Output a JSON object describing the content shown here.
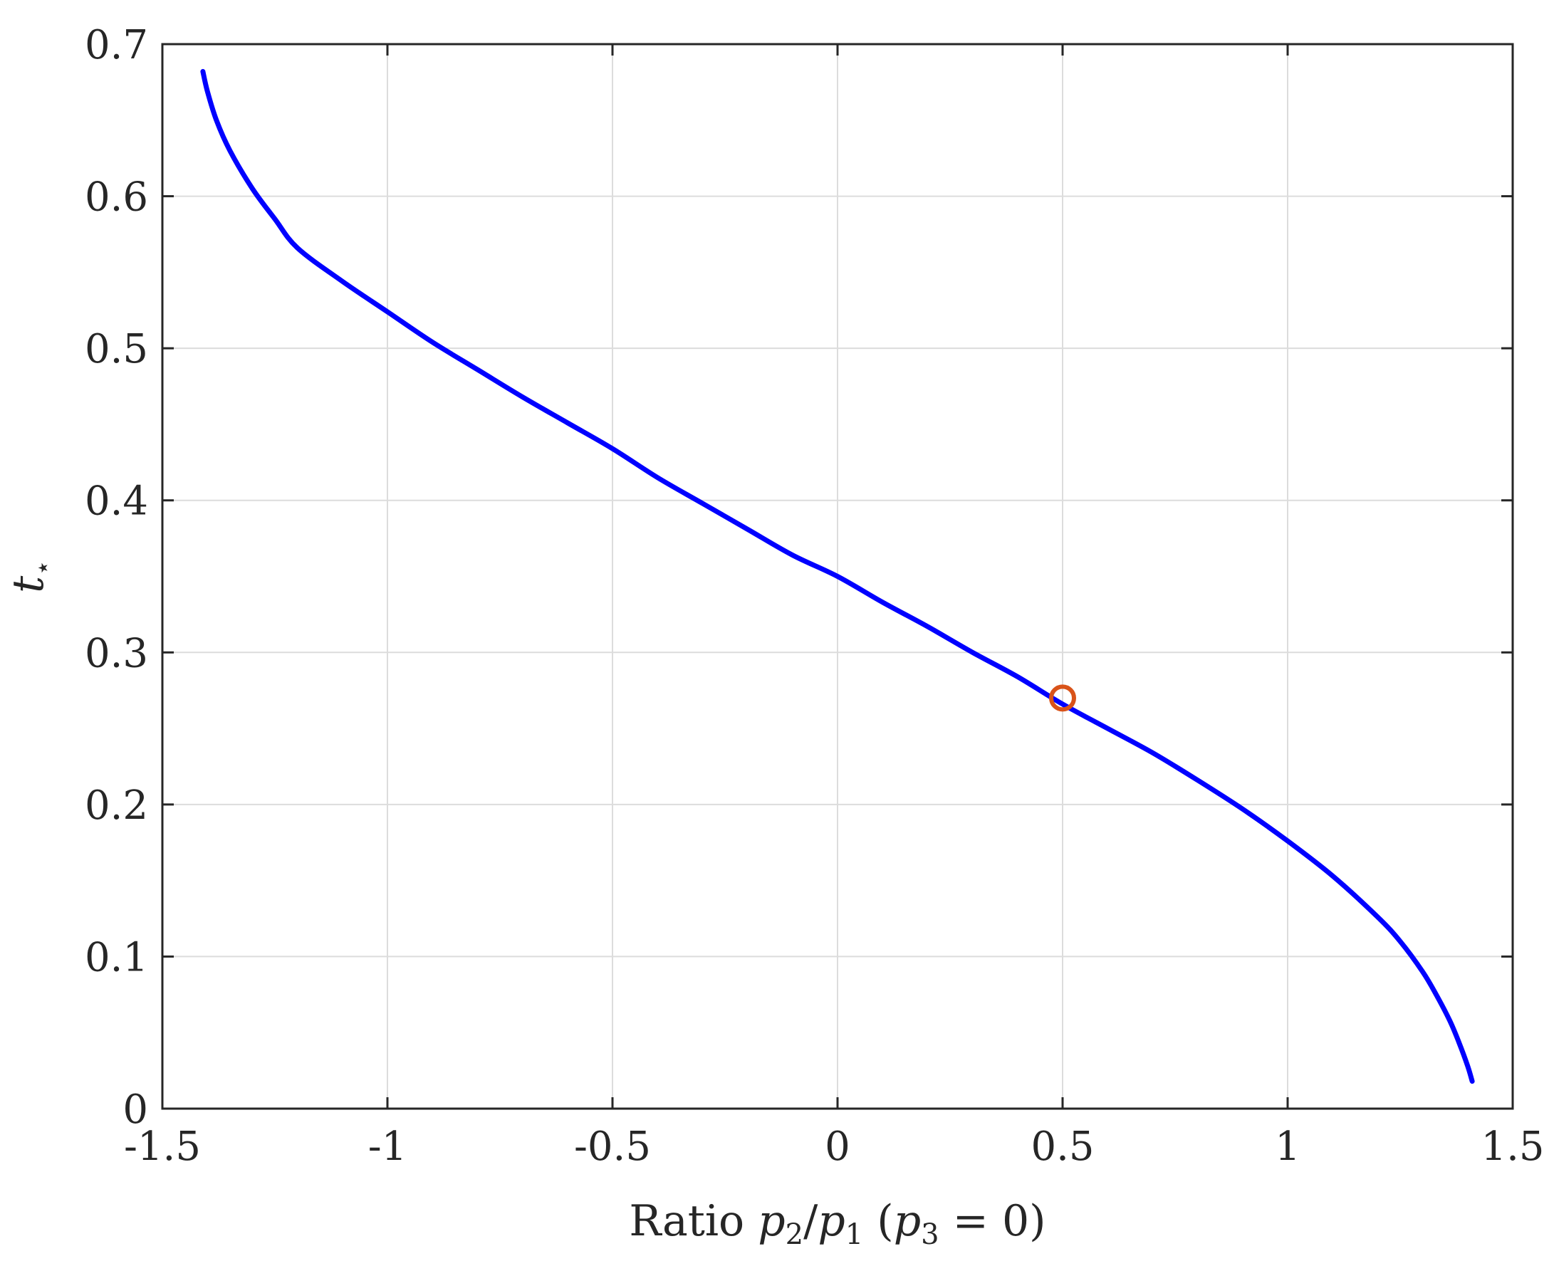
{
  "chart_data": {
    "type": "line",
    "title": "",
    "xlabel": {
      "prefix": "Ratio ",
      "p": "p",
      "sub2": "2",
      "slash": "/",
      "sub1": "1",
      "open": " (",
      "sub3": "3",
      "eq": " = 0)"
    },
    "ylabel": {
      "t": "t",
      "sub": "⋆"
    },
    "xlim": [
      -1.5,
      1.5
    ],
    "ylim": [
      0,
      0.7
    ],
    "xticks": [
      "-1.5",
      "-1",
      "-0.5",
      "0",
      "0.5",
      "1",
      "1.5"
    ],
    "yticks": [
      "0",
      "0.1",
      "0.2",
      "0.3",
      "0.4",
      "0.5",
      "0.6",
      "0.7"
    ],
    "grid": true,
    "series": [
      {
        "color": "#0000ff",
        "x": [
          -1.41,
          -1.4,
          -1.38,
          -1.35,
          -1.3,
          -1.25,
          -1.2,
          -1.1,
          -1.0,
          -0.9,
          -0.8,
          -0.7,
          -0.6,
          -0.5,
          -0.4,
          -0.3,
          -0.2,
          -0.1,
          0.0,
          0.1,
          0.2,
          0.3,
          0.4,
          0.5,
          0.6,
          0.7,
          0.8,
          0.9,
          1.0,
          1.1,
          1.2,
          1.25,
          1.3,
          1.33,
          1.36,
          1.38,
          1.4,
          1.41
        ],
        "y": [
          0.682,
          0.669,
          0.65,
          0.63,
          0.605,
          0.585,
          0.566,
          0.544,
          0.524,
          0.504,
          0.486,
          0.468,
          0.451,
          0.434,
          0.415,
          0.398,
          0.381,
          0.364,
          0.35,
          0.333,
          0.317,
          0.3,
          0.284,
          0.266,
          0.25,
          0.234,
          0.216,
          0.197,
          0.176,
          0.153,
          0.126,
          0.11,
          0.09,
          0.075,
          0.058,
          0.044,
          0.028,
          0.018
        ]
      }
    ],
    "marker": {
      "x": 0.5,
      "y": 0.27,
      "color": "#d95319"
    }
  }
}
